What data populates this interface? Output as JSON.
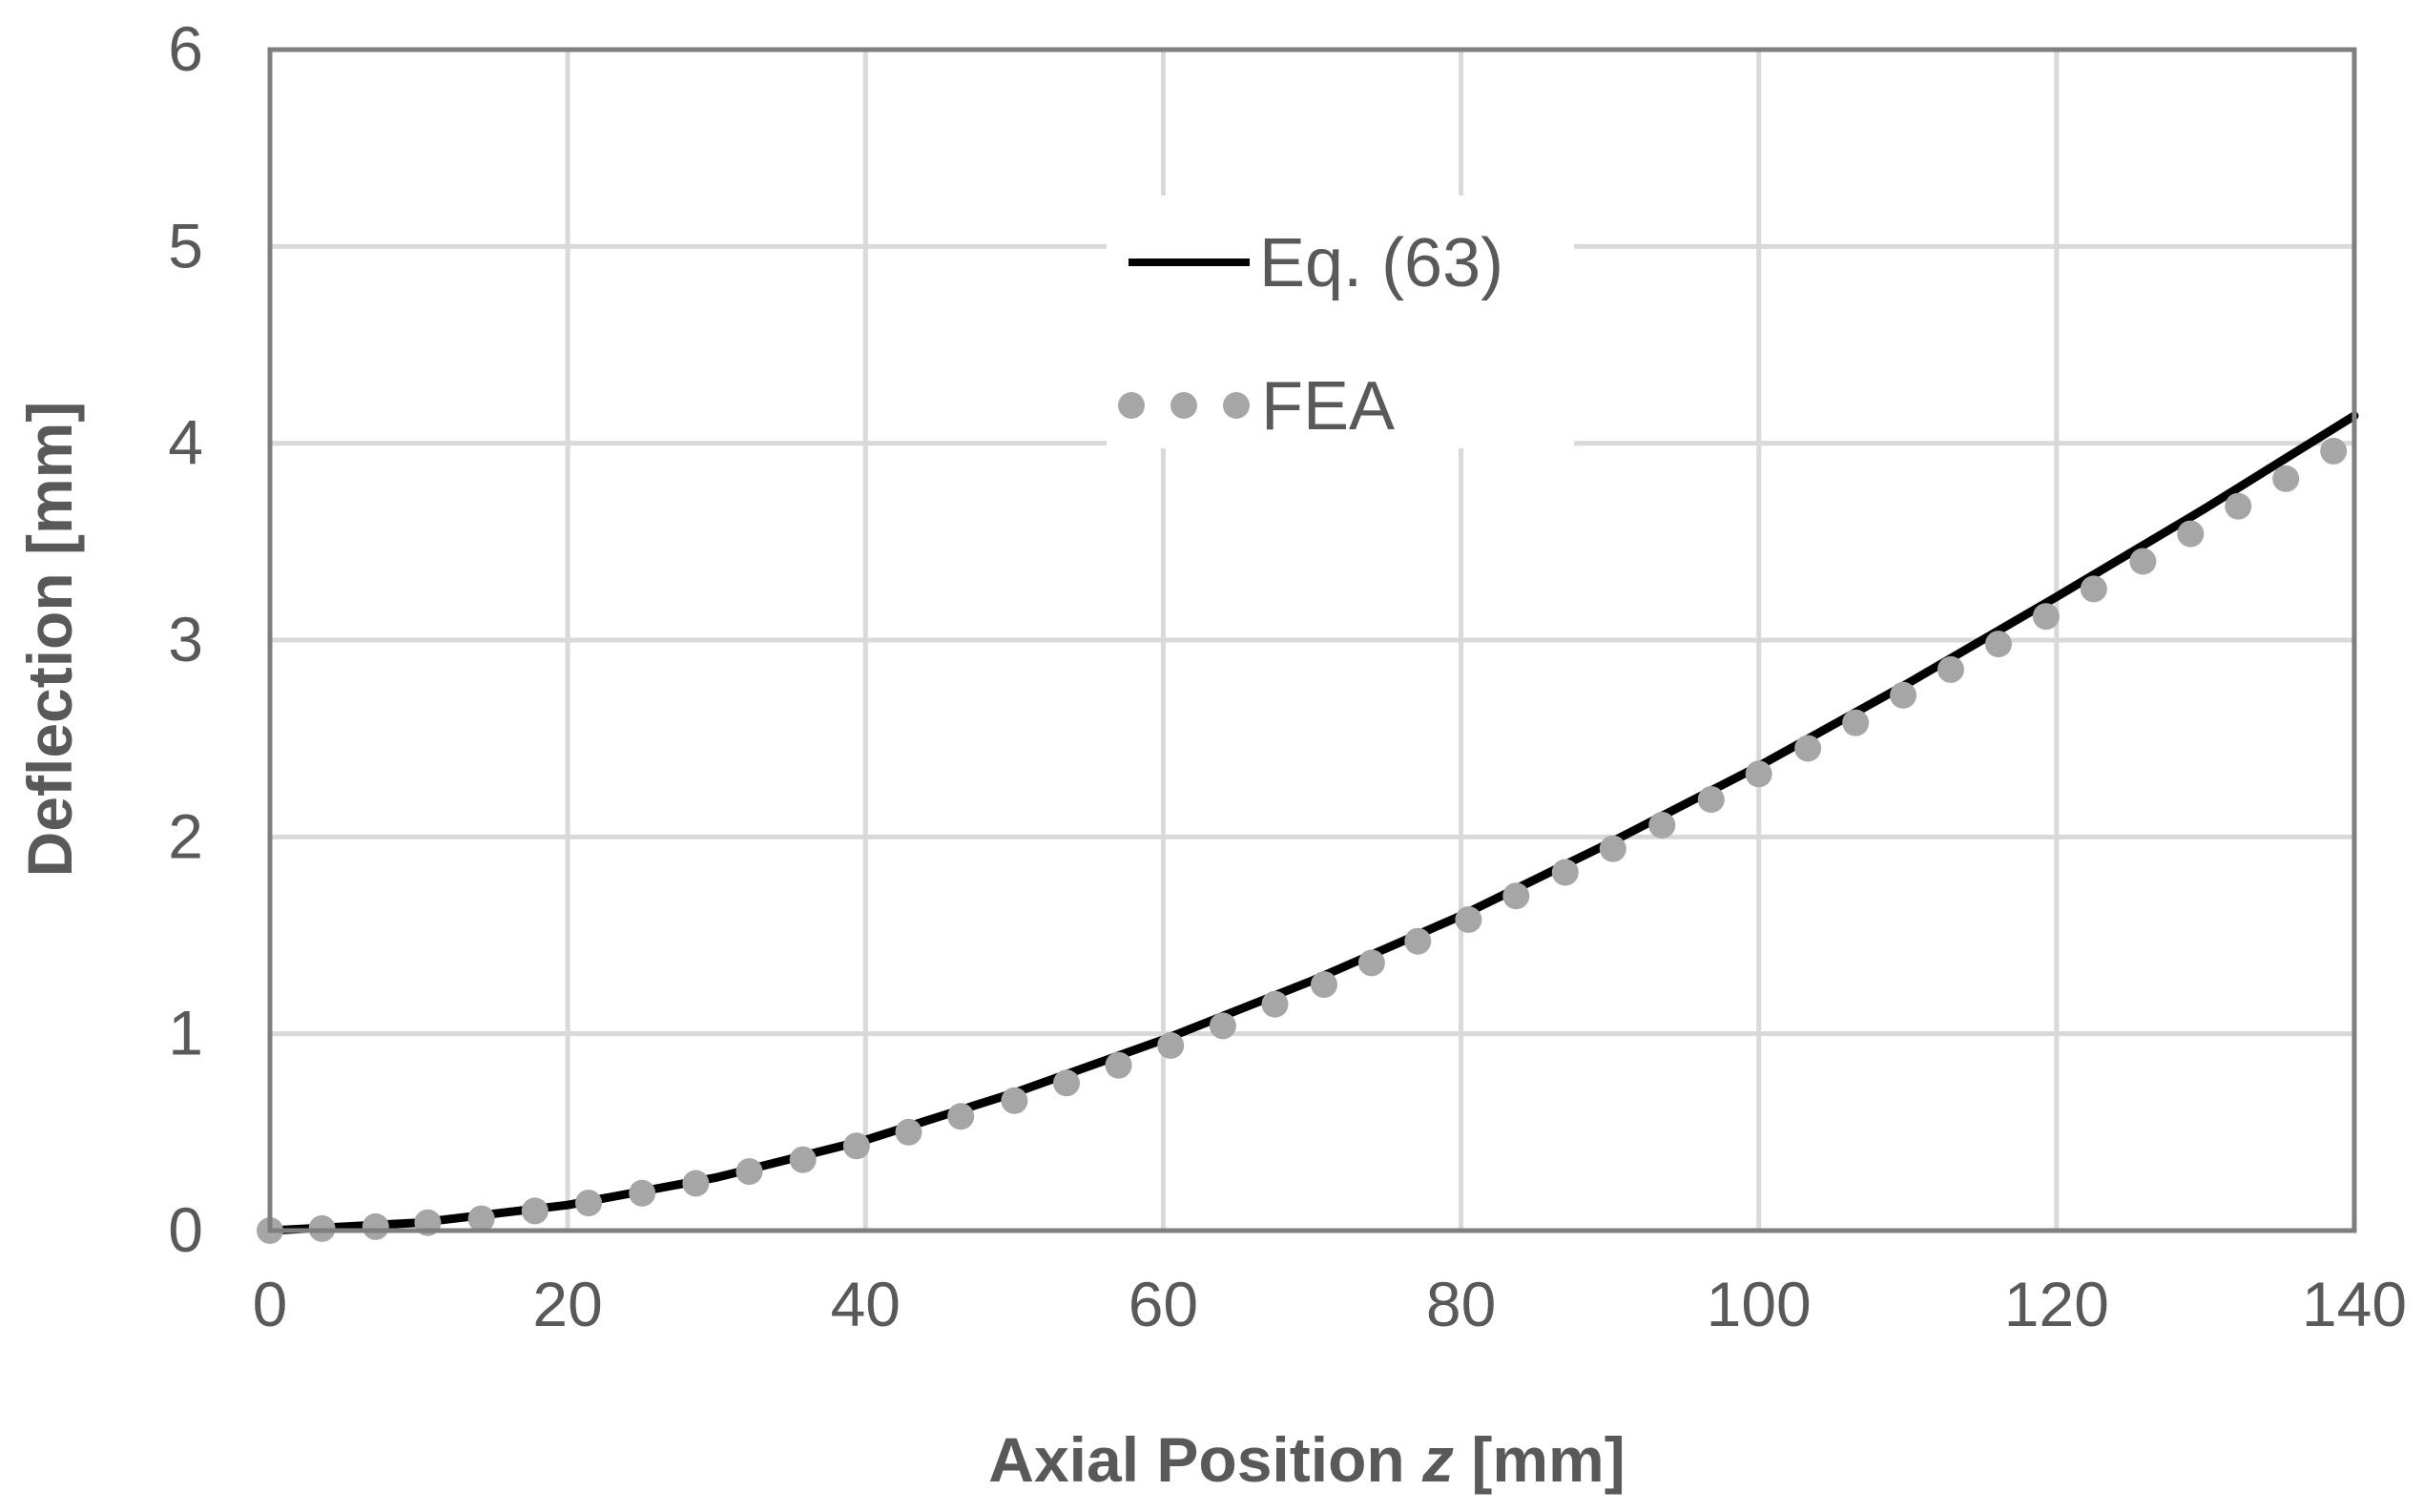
{
  "chart_data": {
    "type": "line",
    "title": "",
    "xlabel": "Axial Position z [mm]",
    "xlabel_parts": {
      "before": "Axial Position ",
      "italic": "z",
      "after": " [mm]"
    },
    "ylabel": "Deflection [mm]",
    "xlim": [
      0,
      140
    ],
    "ylim": [
      0,
      6
    ],
    "x_ticks": [
      "0",
      "20",
      "40",
      "60",
      "80",
      "100",
      "120",
      "140"
    ],
    "y_ticks": [
      "0",
      "1",
      "2",
      "3",
      "4",
      "5",
      "6"
    ],
    "grid": true,
    "legend_position": "top-center",
    "series": [
      {
        "name": "Eq. (63)",
        "style": "solid-line",
        "color": "#000000",
        "x": [
          0,
          10,
          20,
          30,
          40,
          50,
          60,
          70,
          80,
          90,
          100,
          110,
          120,
          130,
          140
        ],
        "y": [
          0,
          0.04,
          0.13,
          0.27,
          0.46,
          0.7,
          0.97,
          1.27,
          1.6,
          1.97,
          2.36,
          2.78,
          3.22,
          3.67,
          4.14
        ]
      },
      {
        "name": "FEA",
        "style": "dots",
        "color": "#a6a6a6",
        "x": [
          0,
          3.5,
          7.1,
          10.6,
          14.2,
          17.8,
          21.4,
          25.0,
          28.6,
          32.2,
          35.8,
          39.4,
          42.9,
          46.4,
          50.0,
          53.5,
          57.0,
          60.5,
          64.0,
          67.5,
          70.8,
          74.0,
          77.1,
          80.5,
          83.7,
          87.0,
          90.2,
          93.5,
          96.8,
          100.0,
          103.3,
          106.5,
          109.7,
          112.9,
          116.1,
          119.3,
          122.5,
          125.8,
          129.0,
          132.2,
          135.4,
          138.6
        ],
        "y": [
          0,
          0.01,
          0.02,
          0.04,
          0.06,
          0.1,
          0.14,
          0.19,
          0.24,
          0.3,
          0.36,
          0.43,
          0.5,
          0.58,
          0.66,
          0.75,
          0.84,
          0.94,
          1.04,
          1.15,
          1.25,
          1.36,
          1.47,
          1.58,
          1.7,
          1.82,
          1.94,
          2.06,
          2.19,
          2.32,
          2.45,
          2.58,
          2.72,
          2.85,
          2.98,
          3.12,
          3.26,
          3.4,
          3.54,
          3.68,
          3.82,
          3.96
        ]
      }
    ]
  }
}
